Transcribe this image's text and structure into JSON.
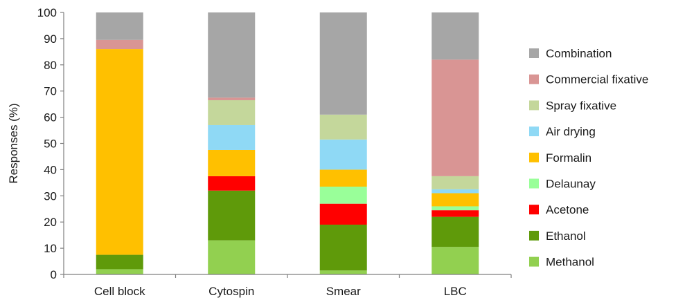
{
  "chart_data": {
    "type": "bar",
    "stacked": true,
    "categories": [
      "Cell block",
      "Cytospin",
      "Smear",
      "LBC"
    ],
    "ylabel": "Responses (%)",
    "xlabel": "",
    "ylim": [
      0,
      100
    ],
    "yticks": [
      0,
      10,
      20,
      30,
      40,
      50,
      60,
      70,
      80,
      90,
      100
    ],
    "grid": false,
    "legend_position": "right",
    "series": [
      {
        "name": "Methanol",
        "color": "#92d050",
        "values": [
          2,
          13,
          1.5,
          10.5
        ]
      },
      {
        "name": "Ethanol",
        "color": "#5f9a0a",
        "values": [
          5.5,
          19,
          17.5,
          11.5
        ]
      },
      {
        "name": "Acetone",
        "color": "#ff0000",
        "values": [
          0,
          5.5,
          8,
          2.5
        ]
      },
      {
        "name": "Delaunay",
        "color": "#99ff99",
        "values": [
          0,
          0,
          6.5,
          1.5
        ]
      },
      {
        "name": "Formalin",
        "color": "#ffc000",
        "values": [
          78.5,
          10,
          6.5,
          5
        ]
      },
      {
        "name": "Air drying",
        "color": "#8fd9f5",
        "values": [
          0,
          9.5,
          11.5,
          1.5
        ]
      },
      {
        "name": "Spray fixative",
        "color": "#c4d79b",
        "values": [
          0,
          9.5,
          9.5,
          5
        ]
      },
      {
        "name": "Commercial fixative",
        "color": "#d99594",
        "values": [
          3.5,
          1,
          0,
          44.5
        ]
      },
      {
        "name": "Combination",
        "color": "#a6a6a6",
        "values": [
          10.5,
          32.5,
          39,
          18
        ]
      }
    ]
  }
}
